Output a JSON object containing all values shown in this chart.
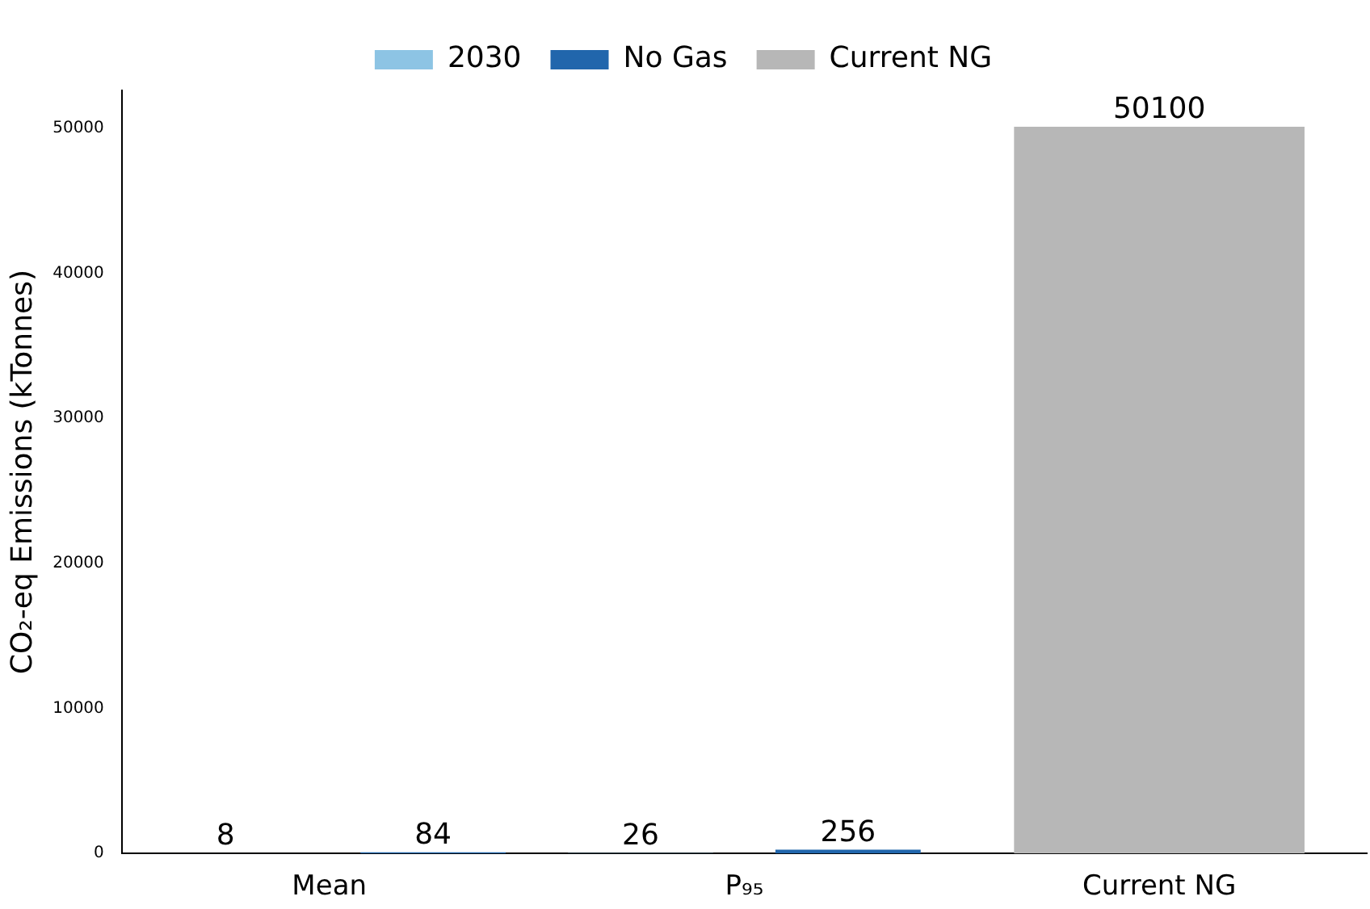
{
  "chart_data": {
    "type": "bar",
    "ylabel": "CO₂-eq Emissions (kTonnes)",
    "categories": [
      "Mean",
      "P₉₅",
      "Current NG"
    ],
    "series": [
      {
        "name": "2030",
        "color": "#8dc4e4",
        "values": [
          8,
          26,
          null
        ]
      },
      {
        "name": "No Gas",
        "color": "#2166ac",
        "values": [
          84,
          256,
          null
        ]
      },
      {
        "name": "Current NG",
        "color": "#b7b7b7",
        "values": [
          null,
          null,
          50100
        ]
      }
    ],
    "ylim": [
      0,
      52605
    ],
    "yticks": [
      0,
      10000,
      20000,
      30000,
      40000,
      50000
    ],
    "legend": "top",
    "data_labels": true
  }
}
